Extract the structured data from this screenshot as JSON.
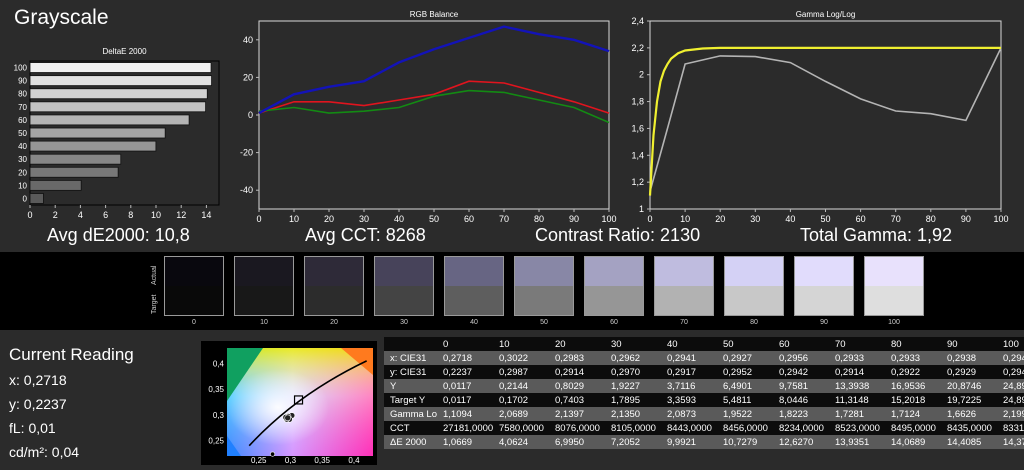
{
  "page_title": "Grayscale",
  "metrics": {
    "avg_de": "Avg dE2000: 10,8",
    "avg_cct": "Avg CCT: 8268",
    "contrast": "Contrast Ratio: 2130",
    "gamma": "Total Gamma: 1,92"
  },
  "colors": {
    "red": "#e0141e",
    "green": "#138a13",
    "blue": "#1313b8",
    "yellow": "#f0f030",
    "gray_line": "#b4b4b4"
  },
  "chart_data": [
    {
      "type": "bar",
      "orientation": "horizontal",
      "title": "DeltaE 2000",
      "categories": [
        "0",
        "10",
        "20",
        "30",
        "40",
        "50",
        "60",
        "70",
        "80",
        "90",
        "100"
      ],
      "values": [
        1.0669,
        4.0624,
        6.995,
        7.2052,
        9.9921,
        10.7279,
        12.627,
        13.9351,
        14.0689,
        14.4085,
        14.37
      ],
      "xlim": [
        0,
        15
      ],
      "xticks": [
        "0",
        "2",
        "4",
        "6",
        "8",
        "10",
        "12",
        "14"
      ],
      "yticks": [
        "0",
        "10",
        "20",
        "30",
        "40",
        "50",
        "60",
        "70",
        "80",
        "90",
        "100"
      ]
    },
    {
      "type": "line",
      "title": "RGB Balance",
      "x": [
        0,
        10,
        20,
        30,
        40,
        50,
        60,
        70,
        80,
        90,
        100
      ],
      "series": [
        {
          "color": "red",
          "values": [
            1,
            7,
            7,
            5,
            8,
            11,
            18,
            17,
            12,
            7,
            1
          ]
        },
        {
          "color": "green",
          "values": [
            2,
            4,
            1,
            2,
            4,
            10,
            13,
            12,
            8,
            4,
            -4
          ]
        },
        {
          "color": "blue",
          "values": [
            1,
            11,
            15,
            18,
            28,
            35,
            41,
            47,
            43,
            40,
            34
          ]
        }
      ],
      "xlim": [
        0,
        100
      ],
      "ylim": [
        -50,
        50
      ],
      "xticks": [
        "0",
        "10",
        "20",
        "30",
        "40",
        "50",
        "60",
        "70",
        "80",
        "90",
        "100"
      ],
      "yticks": [
        "40",
        "20",
        "0",
        "-20",
        "-40"
      ]
    },
    {
      "type": "line",
      "title": "Gamma Log/Log",
      "x_measured": [
        0,
        5,
        10,
        20,
        30,
        40,
        50,
        60,
        70,
        80,
        90,
        100
      ],
      "measured": [
        1.13,
        1.6,
        2.08,
        2.14,
        2.135,
        2.09,
        1.95,
        1.82,
        1.73,
        1.71,
        1.66,
        2.2
      ],
      "x_target": [
        0,
        1,
        2,
        3,
        4,
        5,
        6,
        8,
        10,
        15,
        20,
        30,
        50,
        100
      ],
      "target": [
        1.1,
        1.55,
        1.8,
        1.95,
        2.03,
        2.08,
        2.12,
        2.16,
        2.18,
        2.195,
        2.2,
        2.2,
        2.2,
        2.2
      ],
      "xlim": [
        0,
        100
      ],
      "ylim": [
        1,
        2.4
      ],
      "xticks": [
        "0",
        "10",
        "20",
        "30",
        "40",
        "50",
        "60",
        "70",
        "80",
        "90",
        "100"
      ],
      "yticks": [
        "2,4",
        "2,2",
        "2",
        "1,8",
        "1,6",
        "1,4",
        "1,2",
        "1"
      ]
    },
    {
      "type": "scatter",
      "title": "",
      "target_point": [
        0.3127,
        0.329
      ],
      "measured_points": [
        [
          0.2718,
          0.2237
        ],
        [
          0.3022,
          0.2987
        ],
        [
          0.2983,
          0.2914
        ],
        [
          0.2962,
          0.297
        ],
        [
          0.2941,
          0.2917
        ],
        [
          0.2927,
          0.2952
        ],
        [
          0.2956,
          0.2942
        ]
      ],
      "xlim": [
        0.2,
        0.43
      ],
      "ylim": [
        0.22,
        0.43
      ],
      "xticks": [
        "0,25",
        "0,3",
        "0,35",
        "0,4"
      ],
      "yticks": [
        "0,4",
        "0,35",
        "0,3",
        "0,25"
      ]
    }
  ],
  "swatches": {
    "axis_actual": "Actual",
    "axis_target": "Target",
    "items": [
      {
        "label": "0",
        "actual": "#09080e",
        "target": "#090909"
      },
      {
        "label": "10",
        "actual": "#1a1820",
        "target": "#181818"
      },
      {
        "label": "20",
        "actual": "#2e2a38",
        "target": "#2c2c2c"
      },
      {
        "label": "30",
        "actual": "#47435a",
        "target": "#444444"
      },
      {
        "label": "40",
        "actual": "#676583",
        "target": "#5e5e5e"
      },
      {
        "label": "50",
        "actual": "#8887a6",
        "target": "#7a7a7a"
      },
      {
        "label": "60",
        "actual": "#a4a2c2",
        "target": "#969696"
      },
      {
        "label": "70",
        "actual": "#bfbcdf",
        "target": "#b2b2b2"
      },
      {
        "label": "80",
        "actual": "#d4d1f5",
        "target": "#c8c8c8"
      },
      {
        "label": "90",
        "actual": "#e1dcfc",
        "target": "#d5d5d5"
      },
      {
        "label": "100",
        "actual": "#e8e1fc",
        "target": "#dedede"
      }
    ]
  },
  "reading": {
    "title": "Current Reading",
    "x": "x: 0,2718",
    "y": "y: 0,2237",
    "fl": "fL: 0,01",
    "cd": "cd/m²: 0,04"
  },
  "table": {
    "header": [
      "0",
      "10",
      "20",
      "30",
      "40",
      "50",
      "60",
      "70",
      "80",
      "90",
      "100"
    ],
    "rows": [
      {
        "label": "x: CIE31",
        "values": [
          "0,2718",
          "0,3022",
          "0,2983",
          "0,2962",
          "0,2941",
          "0,2927",
          "0,2956",
          "0,2933",
          "0,2933",
          "0,2938",
          "0,294"
        ]
      },
      {
        "label": "y: CIE31",
        "values": [
          "0,2237",
          "0,2987",
          "0,2914",
          "0,2970",
          "0,2917",
          "0,2952",
          "0,2942",
          "0,2914",
          "0,2922",
          "0,2929",
          "0,294"
        ]
      },
      {
        "label": "Y",
        "values": [
          "0,0117",
          "0,2144",
          "0,8029",
          "1,9227",
          "3,7116",
          "6,4901",
          "9,7581",
          "13,3938",
          "16,9536",
          "20,8746",
          "24,89"
        ]
      },
      {
        "label": "Target Y",
        "values": [
          "0,0117",
          "0,1702",
          "0,7403",
          "1,7895",
          "3,3593",
          "5,4811",
          "8,0446",
          "11,3148",
          "15,2018",
          "19,7225",
          "24,89"
        ]
      },
      {
        "label": "Gamma Log/Log",
        "values": [
          "1,1094",
          "2,0689",
          "2,1397",
          "2,1350",
          "2,0873",
          "1,9522",
          "1,8223",
          "1,7281",
          "1,7124",
          "1,6626",
          "2,199"
        ]
      },
      {
        "label": "CCT",
        "values": [
          "27181,0000",
          "7580,0000",
          "8076,0000",
          "8105,0000",
          "8443,0000",
          "8456,0000",
          "8234,0000",
          "8523,0000",
          "8495,0000",
          "8435,0000",
          "8331,"
        ]
      },
      {
        "label": "ΔE 2000",
        "values": [
          "1,0669",
          "4,0624",
          "6,9950",
          "7,2052",
          "9,9921",
          "10,7279",
          "12,6270",
          "13,9351",
          "14,0689",
          "14,4085",
          "14,37"
        ]
      }
    ]
  }
}
